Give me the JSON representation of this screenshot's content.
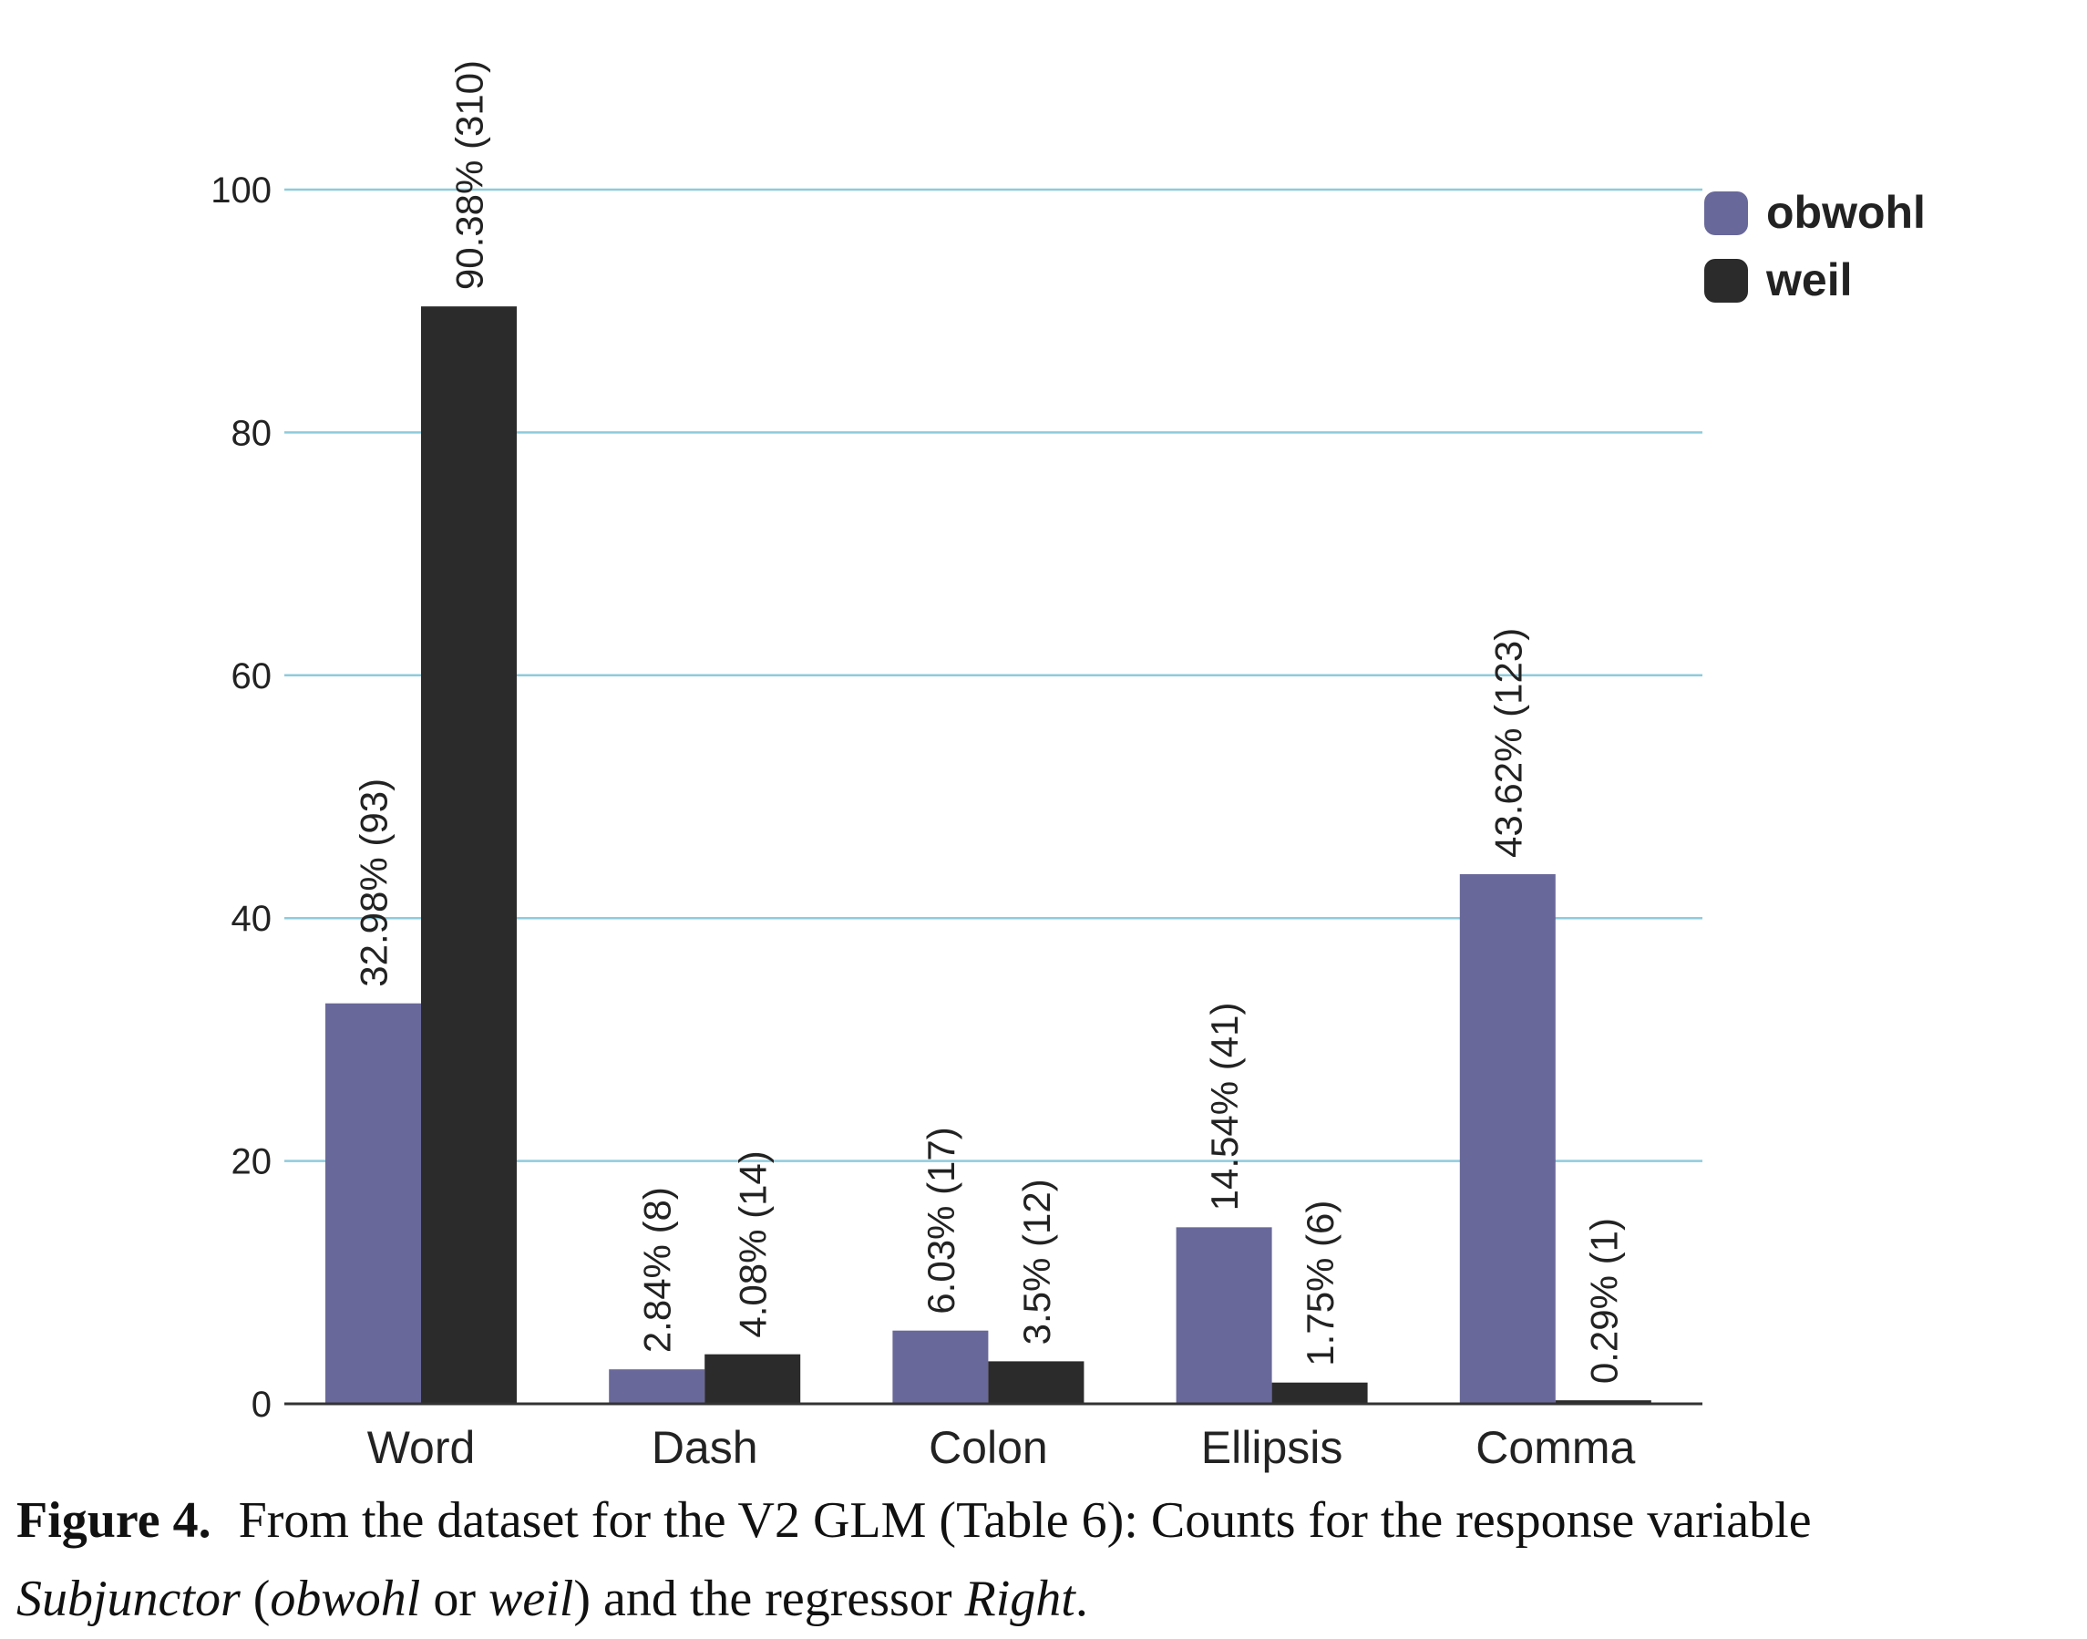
{
  "chart_data": {
    "type": "bar",
    "categories": [
      "Word",
      "Dash",
      "Colon",
      "Ellipsis",
      "Comma"
    ],
    "series": [
      {
        "name": "obwohl",
        "color": "#69689a",
        "values": [
          32.98,
          2.84,
          6.03,
          14.54,
          43.62
        ],
        "labels": [
          "32.98% (93)",
          "2.84% (8)",
          "6.03% (17)",
          "14.54% (41)",
          "43.62% (123)"
        ]
      },
      {
        "name": "weil",
        "color": "#2b2b2b",
        "values": [
          90.38,
          4.08,
          3.5,
          1.75,
          0.29
        ],
        "labels": [
          "90.38% (310)",
          "4.08% (14)",
          "3.5% (12)",
          "1.75% (6)",
          "0.29% (1)"
        ]
      }
    ],
    "yticks": [
      0,
      20,
      40,
      60,
      80,
      100
    ],
    "ylim": [
      0,
      100
    ],
    "grid": true,
    "grid_color": "#8ecbdc",
    "legend_position": "top-right",
    "title": "",
    "xlabel": "",
    "ylabel": ""
  },
  "caption": {
    "label": "Figure 4.",
    "text_1": "From the dataset for the V2 GLM (Table 6): Counts for the response variable",
    "subjunctor": "Subjunctor",
    "text_2": " (",
    "obwohl": "obwohl",
    "text_3": " or ",
    "weil": "weil",
    "text_4": ") and the regressor ",
    "right": "Right",
    "text_5": "."
  }
}
